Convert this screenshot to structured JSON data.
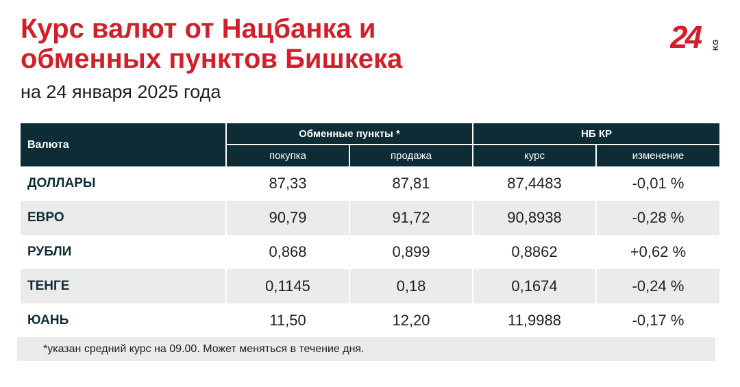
{
  "header": {
    "title_line1": "Курс валют от Нацбанка и",
    "title_line2": "обменных пунктов Бишкека",
    "subtitle": "на 24 января 2025 года"
  },
  "logo": {
    "text": "24",
    "suffix": "KG"
  },
  "table": {
    "col_currency": "Валюта",
    "group_exchange": "Обменные пункты *",
    "group_nb": "НБ КР",
    "sub_buy": "покупка",
    "sub_sell": "продажа",
    "sub_rate": "курс",
    "sub_change": "изменение",
    "rows": [
      {
        "name": "ДОЛЛАРЫ",
        "buy": "87,33",
        "sell": "87,81",
        "rate": "87,4483",
        "change": "-0,01 %"
      },
      {
        "name": "ЕВРО",
        "buy": "90,79",
        "sell": "91,72",
        "rate": "90,8938",
        "change": "-0,28 %"
      },
      {
        "name": "РУБЛИ",
        "buy": "0,868",
        "sell": "0,899",
        "rate": "0,8862",
        "change": "+0,62 %"
      },
      {
        "name": "ТЕНГЕ",
        "buy": "0,1145",
        "sell": "0,18",
        "rate": "0,1674",
        "change": "-0,24 %"
      },
      {
        "name": "ЮАНЬ",
        "buy": "11,50",
        "sell": "12,20",
        "rate": "11,9988",
        "change": "-0,17 %"
      }
    ]
  },
  "footnote": "*указан средний курс на 09.00. Может меняться в течение дня.",
  "colors": {
    "brand_red": "#d0202b",
    "header_bg": "#0d2c35",
    "stripe": "#ebebeb"
  }
}
